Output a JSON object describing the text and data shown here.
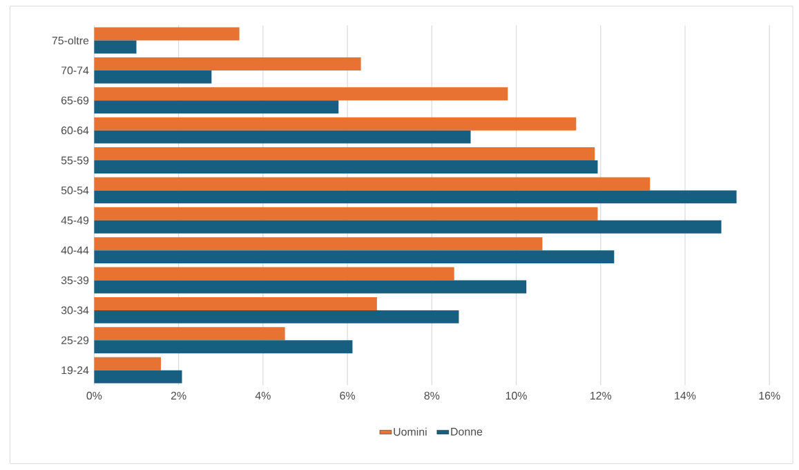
{
  "chart_data": {
    "type": "bar",
    "orientation": "horizontal",
    "categories": [
      "75-oltre",
      "70-74",
      "65-69",
      "60-64",
      "55-59",
      "50-54",
      "45-49",
      "40-44",
      "35-39",
      "30-34",
      "25-29",
      "19-24"
    ],
    "series": [
      {
        "name": "Uomini",
        "color": "#e87232",
        "values": [
          3.44,
          6.32,
          9.8,
          11.42,
          11.86,
          13.17,
          11.93,
          10.62,
          8.53,
          6.7,
          4.52,
          1.58
        ]
      },
      {
        "name": "Donne",
        "color": "#175f81",
        "values": [
          1.0,
          2.78,
          5.79,
          8.92,
          11.93,
          15.22,
          14.86,
          12.32,
          10.24,
          8.64,
          6.12,
          2.08
        ]
      }
    ],
    "xlim": [
      0,
      16
    ],
    "xticks": [
      {
        "value": 0,
        "label": "0%"
      },
      {
        "value": 2,
        "label": "2%"
      },
      {
        "value": 4,
        "label": "4%"
      },
      {
        "value": 6,
        "label": "6%"
      },
      {
        "value": 8,
        "label": "8%"
      },
      {
        "value": 10,
        "label": "10%"
      },
      {
        "value": 12,
        "label": "12%"
      },
      {
        "value": 14,
        "label": "14%"
      },
      {
        "value": 16,
        "label": "16%"
      }
    ],
    "grid": "x",
    "legend": "bottom"
  }
}
